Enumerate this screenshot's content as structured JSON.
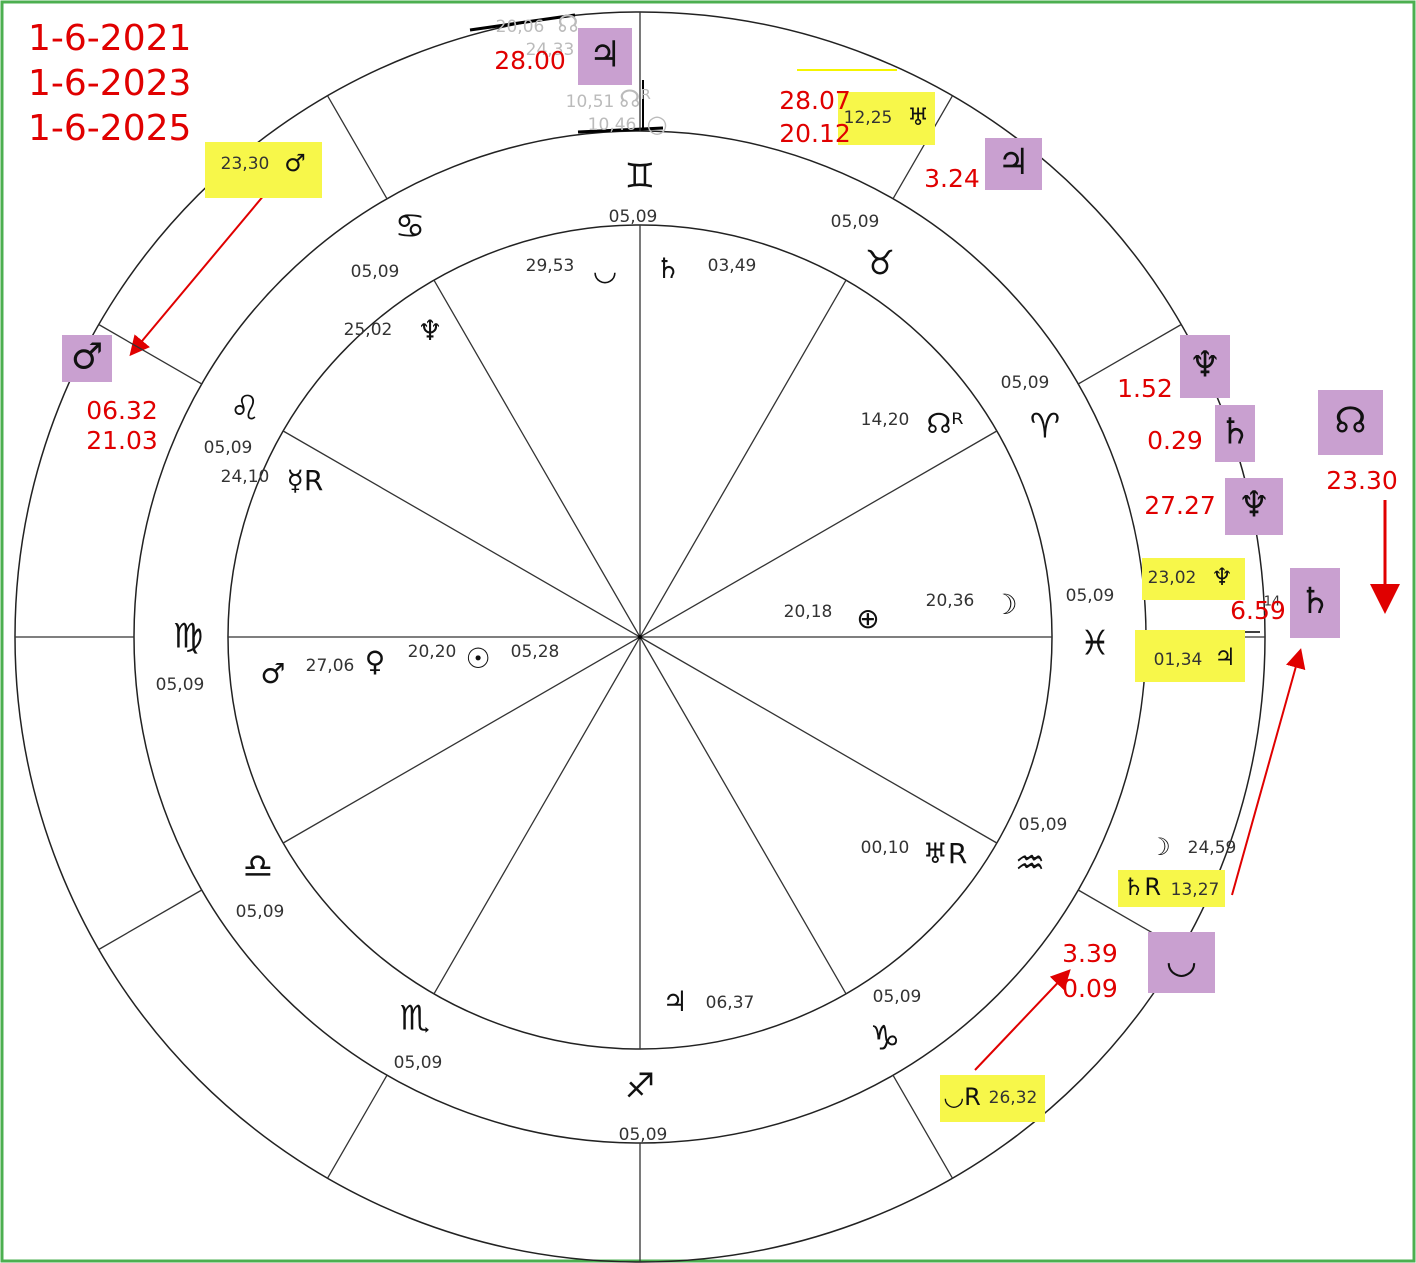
{
  "dates": [
    "1-6-2021",
    "1-6-2023",
    "1-6-2025"
  ],
  "signs": [
    {
      "glyph": "♊",
      "degree": "05,09"
    },
    {
      "glyph": "♉",
      "degree": "05,09"
    },
    {
      "glyph": "♈",
      "degree": "05,09"
    },
    {
      "glyph": "♓",
      "degree": "05,09"
    },
    {
      "glyph": "♒",
      "degree": "05,09"
    },
    {
      "glyph": "♑",
      "degree": "05,09"
    },
    {
      "glyph": "♐",
      "degree": "05,09"
    },
    {
      "glyph": "♏",
      "degree": "05,09"
    },
    {
      "glyph": "♎",
      "degree": "05,09"
    },
    {
      "glyph": "♍",
      "degree": "05,09"
    },
    {
      "glyph": "♌",
      "degree": "05,09"
    },
    {
      "glyph": "♋",
      "degree": "05,09"
    }
  ],
  "natal_planets": [
    {
      "glyph": "◡",
      "degree": "29,53"
    },
    {
      "glyph": "♄",
      "degree": "03,49"
    },
    {
      "glyph": "♆",
      "degree": "25,02"
    },
    {
      "glyph": "☊ᴿ",
      "degree": "14,20"
    },
    {
      "glyph": "☿R",
      "degree": "24,10"
    },
    {
      "glyph": "⊕",
      "degree": "20,18"
    },
    {
      "glyph": "☽",
      "degree": "20,36"
    },
    {
      "glyph": "♀",
      "degree": "27,06"
    },
    {
      "glyph": "♂"
    },
    {
      "glyph": "☉",
      "degree": "20,20"
    },
    {
      "degree": "05,28"
    },
    {
      "glyph": "♅R",
      "degree": "00,10"
    },
    {
      "glyph": "♃",
      "degree": "06,37"
    }
  ],
  "outer_points": [
    {
      "degree": "20,06",
      "glyph": "☊"
    },
    {
      "degree": "24,33"
    },
    {
      "degree": "10,51",
      "glyph": "☊ᴿ"
    },
    {
      "degree": "10,46",
      "glyph": "○"
    },
    {
      "degree": "12,25",
      "glyph": "♅"
    },
    {
      "degree": "23,30",
      "glyph": "♂"
    },
    {
      "degree": "23,02",
      "glyph": "♆"
    },
    {
      "degree": "01,34",
      "glyph": "♃"
    },
    {
      "degree": "14"
    },
    {
      "glyph": "☽",
      "degree": "24,59"
    },
    {
      "glyph": "♄R",
      "degree": "13,27"
    },
    {
      "glyph": "◡R",
      "degree": "26,32"
    }
  ],
  "transits": [
    {
      "glyph": "♃",
      "values": [
        "28.00"
      ]
    },
    {
      "values": [
        "28.07",
        "20.12"
      ]
    },
    {
      "glyph": "♃",
      "values": [
        "3.24"
      ]
    },
    {
      "glyph": "♂",
      "values": [
        "06.32",
        "21.03"
      ]
    },
    {
      "glyph": "♆",
      "values": [
        "1.52"
      ]
    },
    {
      "glyph": "♄",
      "values": [
        "0.29"
      ]
    },
    {
      "glyph": "♆",
      "values": [
        "27.27"
      ]
    },
    {
      "glyph": "☊",
      "values": [
        "23.30"
      ]
    },
    {
      "glyph": "♄",
      "values": [
        "6.59"
      ]
    },
    {
      "glyph": "◡",
      "values": [
        "3.39",
        "0.09"
      ]
    }
  ]
}
